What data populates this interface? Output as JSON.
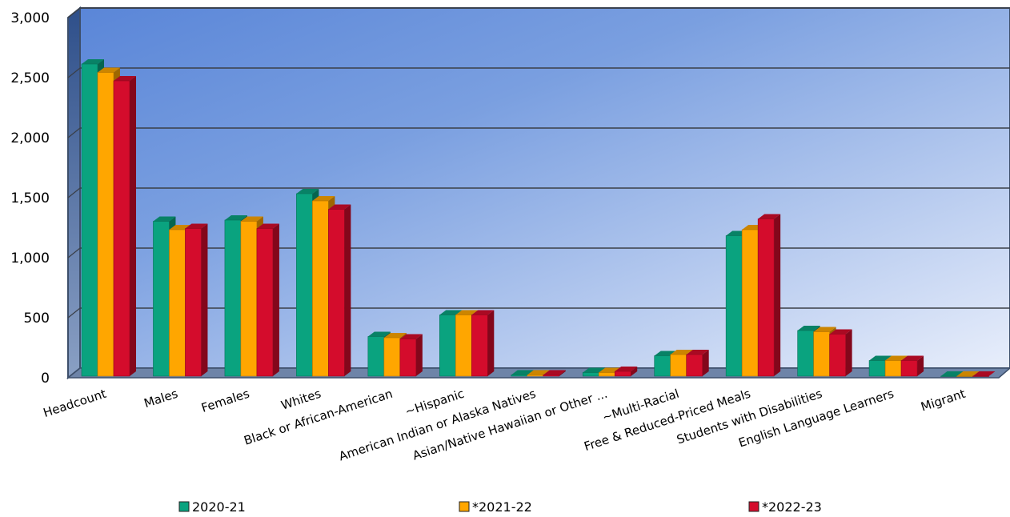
{
  "chart_data": {
    "type": "bar",
    "title": "",
    "xlabel": "",
    "ylabel": "",
    "ylim": [
      0,
      3000
    ],
    "yticks": [
      0,
      500,
      1000,
      1500,
      2000,
      2500,
      3000
    ],
    "ytick_labels": [
      "0",
      "500",
      "1,000",
      "1,500",
      "2,000",
      "2,500",
      "3,000"
    ],
    "grid": true,
    "legend_position": "bottom",
    "categories": [
      "Headcount",
      "Males",
      "Females",
      "Whites",
      "Black or African-American",
      "~Hispanic",
      "American Indian or Alaska Natives",
      "Asian/Native Hawaiian or Other ...",
      "~Multi-Racial",
      "Free & Reduced-Priced Meals",
      "Students with Disabilities",
      "English Language Learners",
      "Migrant"
    ],
    "series": [
      {
        "name": "2020-21",
        "color": "#0aa37f",
        "values": [
          2600,
          1290,
          1300,
          1520,
          330,
          510,
          10,
          30,
          170,
          1170,
          380,
          130,
          0
        ]
      },
      {
        "name": "*2021-22",
        "color": "#ffa600",
        "values": [
          2530,
          1220,
          1290,
          1460,
          320,
          510,
          10,
          30,
          180,
          1220,
          370,
          130,
          0
        ]
      },
      {
        "name": "*2022-23",
        "color": "#d40c2c",
        "values": [
          2460,
          1230,
          1230,
          1390,
          310,
          510,
          10,
          40,
          180,
          1310,
          350,
          130,
          0
        ]
      }
    ]
  }
}
